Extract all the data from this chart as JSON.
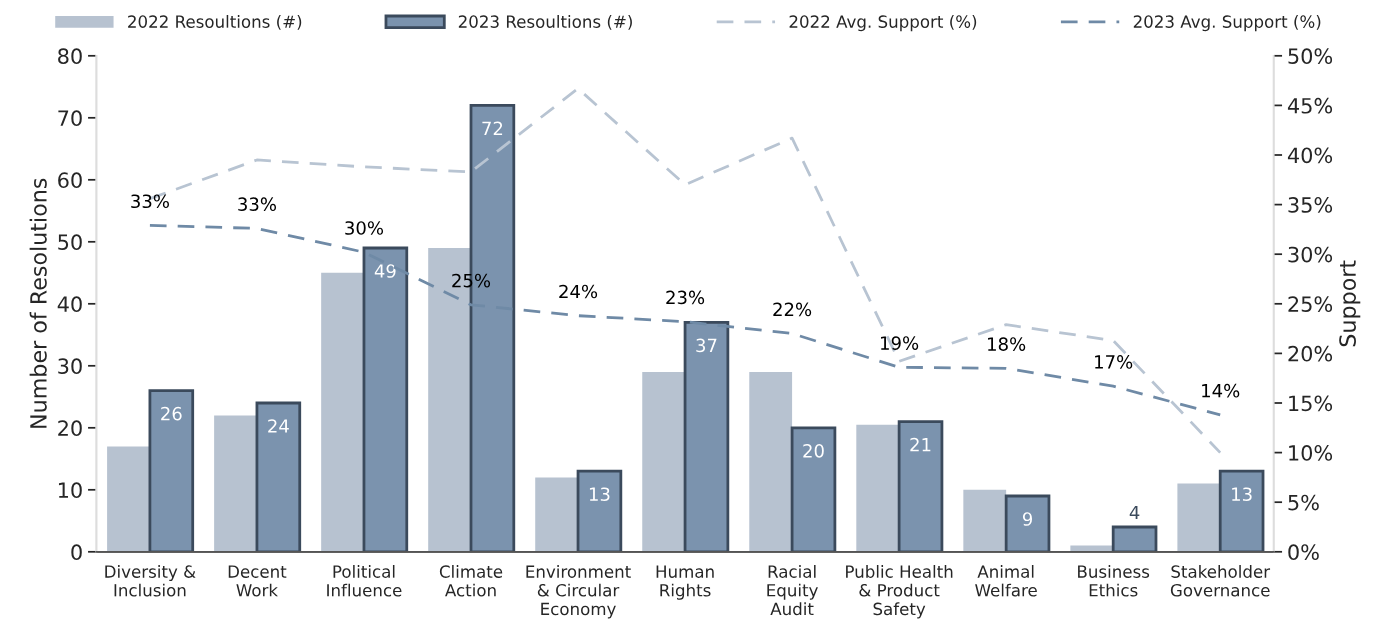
{
  "chart_data": {
    "type": "bar",
    "ylabel": "Number of Resolutions",
    "y2label": "Support",
    "categories": [
      "Diversity &\nInclusion",
      "Decent\nWork",
      "Political\nInfluence",
      "Climate\nAction",
      "Environment\n& Circular\nEconomy",
      "Human\nRights",
      "Racial\nEquity\nAudit",
      "Public Health\n& Product\nSafety",
      "Animal\nWelfare",
      "Business\nEthics",
      "Stakeholder\nGovernance"
    ],
    "series": [
      {
        "name": "2022 Resoultions (#)",
        "color": "#b7c2d0",
        "values": [
          17,
          22,
          45,
          49,
          12,
          29,
          29,
          20.5,
          10,
          1,
          11
        ]
      },
      {
        "name": "2023 Resoultions (#)",
        "color": "#7b93ae",
        "values": [
          26,
          24,
          49,
          72,
          13,
          37,
          20,
          21,
          9,
          4,
          13
        ],
        "data_labels": true
      },
      {
        "name": "2022 Avg. Support (%)",
        "type": "line",
        "axis": "y2",
        "color": "#b8c4d2",
        "line_style": "dashed",
        "values": [
          35.6,
          39.5,
          38.8,
          38.3,
          46.7,
          37.0,
          41.7,
          19.2,
          22.9,
          21.3,
          10.0
        ]
      },
      {
        "name": "2023 Avg. Support (%)",
        "type": "line",
        "axis": "y2",
        "color": "#6f8aa6",
        "line_style": "dashed",
        "values": [
          32.9,
          32.6,
          30.2,
          24.9,
          23.8,
          23.2,
          22.0,
          18.6,
          18.5,
          16.7,
          13.8
        ],
        "value_labels": [
          "33%",
          "33%",
          "30%",
          "25%",
          "24%",
          "23%",
          "22%",
          "19%",
          "18%",
          "17%",
          "14%"
        ]
      }
    ],
    "ylim": [
      0,
      80
    ],
    "yticks": [
      0,
      10,
      20,
      30,
      40,
      50,
      60,
      70,
      80
    ],
    "y2lim": [
      0,
      50
    ],
    "y2ticks": [
      {
        "value": 0,
        "label": "0%"
      },
      {
        "value": 5,
        "label": "5%"
      },
      {
        "value": 10,
        "label": "10%"
      },
      {
        "value": 15,
        "label": "15%"
      },
      {
        "value": 20,
        "label": "20%"
      },
      {
        "value": 25,
        "label": "25%"
      },
      {
        "value": 30,
        "label": "30%"
      },
      {
        "value": 35,
        "label": "35%"
      },
      {
        "value": 40,
        "label": "40%"
      },
      {
        "value": 45,
        "label": "45%"
      },
      {
        "value": 50,
        "label": "50%"
      }
    ],
    "grid": false,
    "legend": "top"
  }
}
